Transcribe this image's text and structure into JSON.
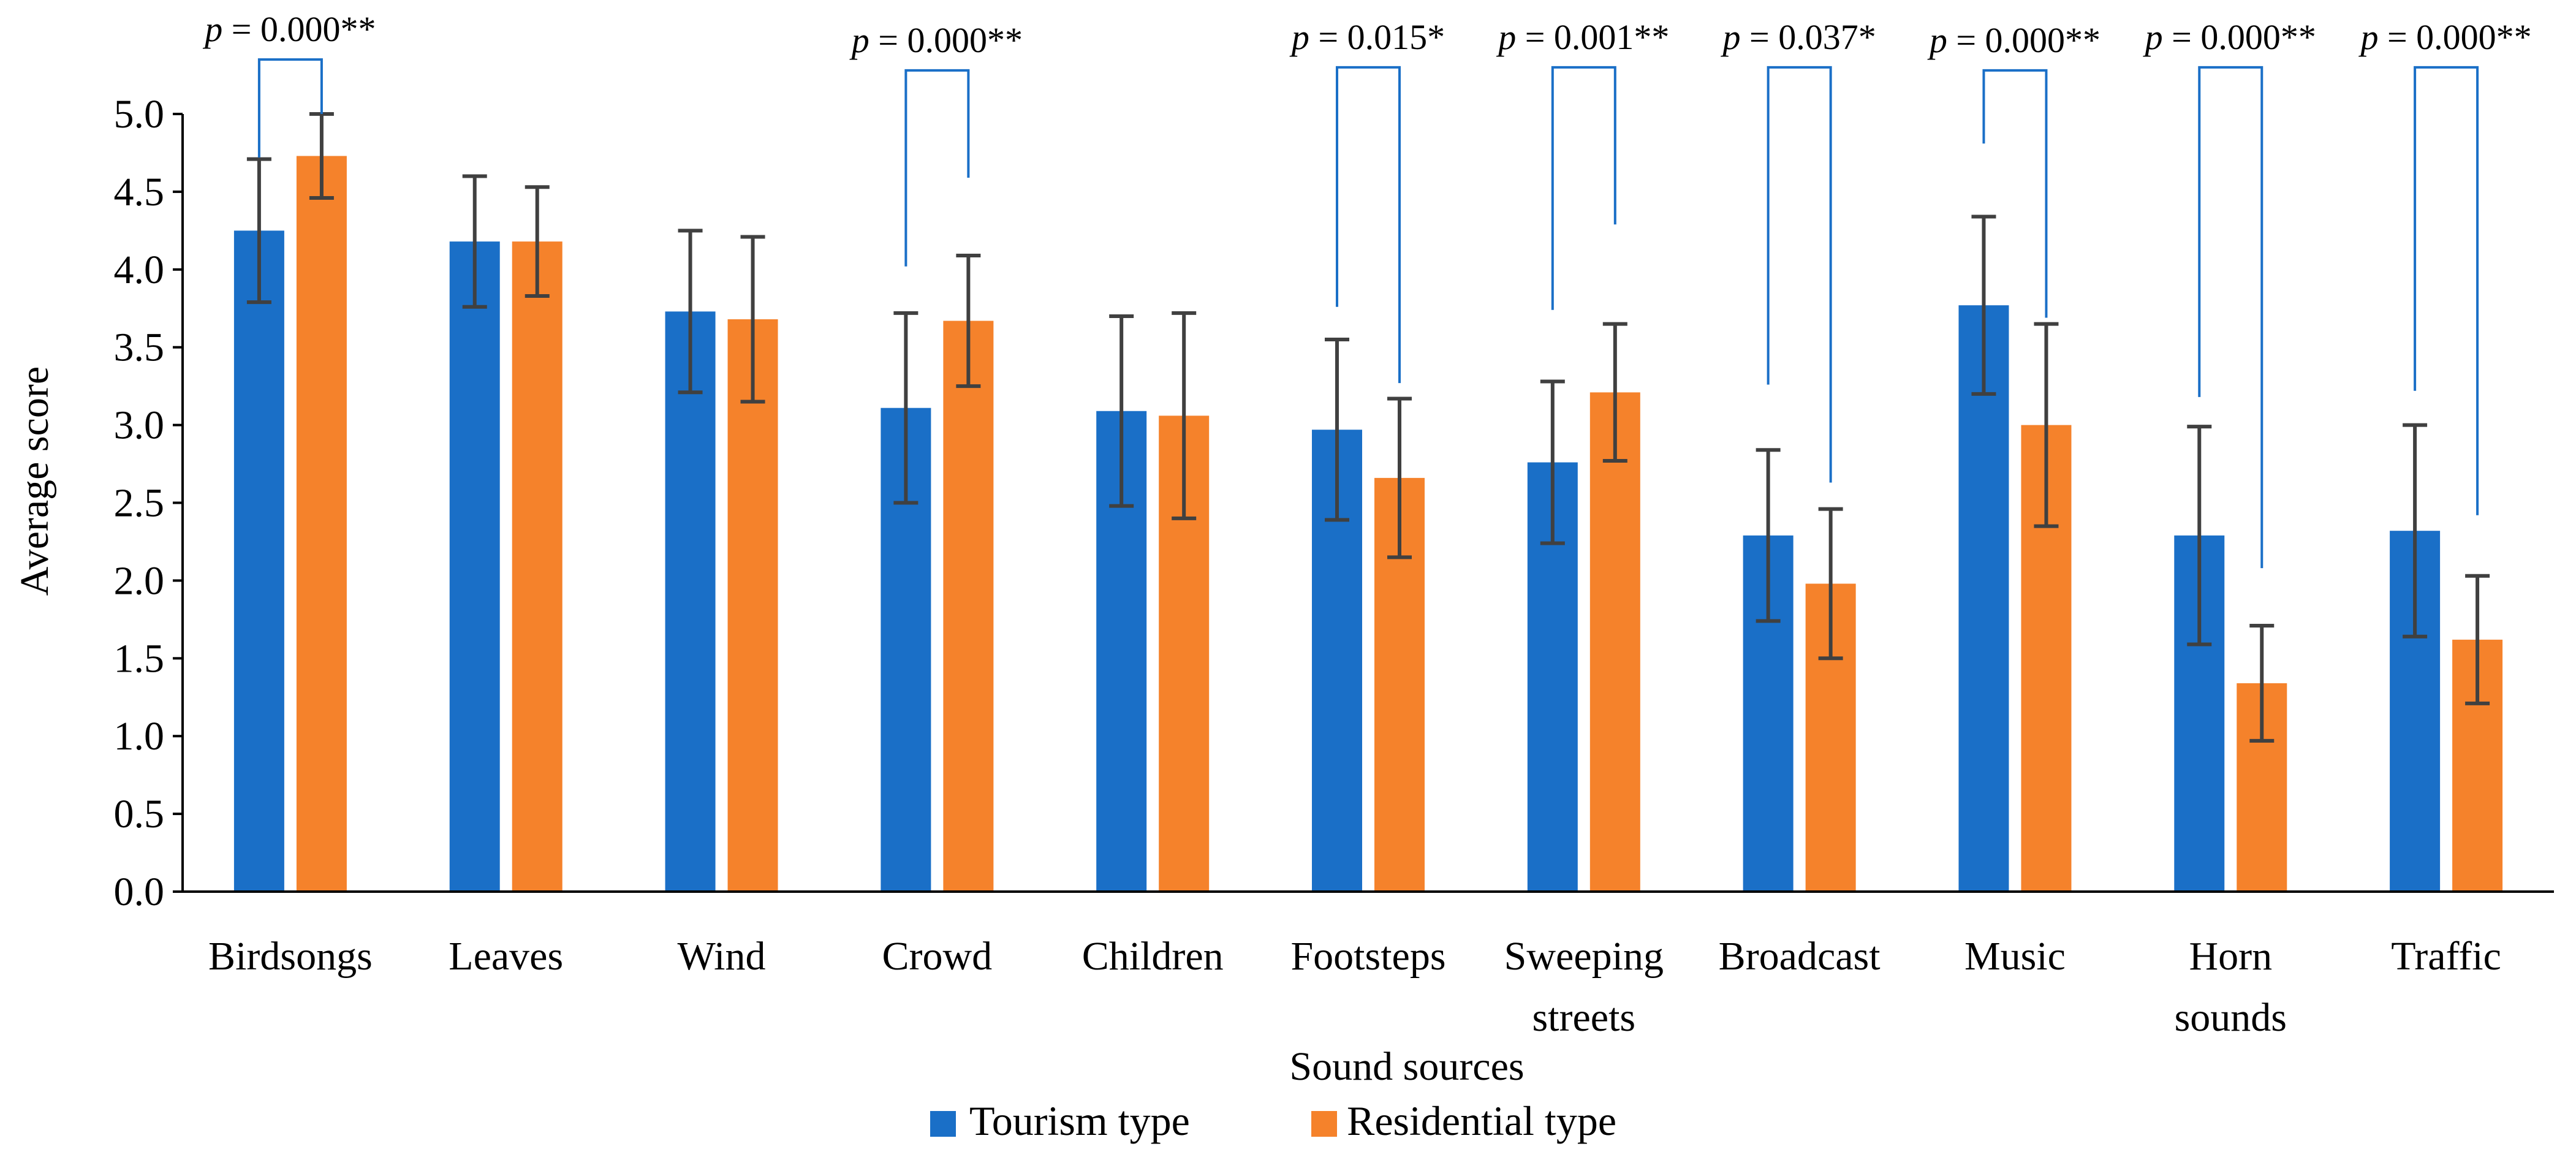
{
  "chart_data": {
    "type": "bar",
    "xlabel": "Sound sources",
    "ylabel": "Average score",
    "ylim": [
      0,
      5
    ],
    "yticks": [
      "0.0",
      "0.5",
      "1.0",
      "1.5",
      "2.0",
      "2.5",
      "3.0",
      "3.5",
      "4.0",
      "4.5",
      "5.0"
    ],
    "categories": [
      [
        "Birdsongs"
      ],
      [
        "Leaves"
      ],
      [
        "Wind"
      ],
      [
        "Crowd"
      ],
      [
        "Children"
      ],
      [
        "Footsteps"
      ],
      [
        "Sweeping",
        "streets"
      ],
      [
        "Broadcast"
      ],
      [
        "Music"
      ],
      [
        "Horn",
        "sounds"
      ],
      [
        "Traffic"
      ]
    ],
    "series": [
      {
        "name": "Tourism type",
        "color": "#1a6fc7",
        "values": [
          4.25,
          4.18,
          3.73,
          3.11,
          3.09,
          2.97,
          2.76,
          2.29,
          3.77,
          2.29,
          2.32
        ],
        "errors": [
          0.46,
          0.42,
          0.52,
          0.61,
          0.61,
          0.58,
          0.52,
          0.55,
          0.57,
          0.7,
          0.68
        ]
      },
      {
        "name": "Residential type",
        "color": "#f5822b",
        "values": [
          4.73,
          4.18,
          3.68,
          3.67,
          3.06,
          2.66,
          3.21,
          1.98,
          3.0,
          1.34,
          1.62
        ],
        "errors": [
          0.27,
          0.35,
          0.53,
          0.42,
          0.66,
          0.51,
          0.44,
          0.48,
          0.65,
          0.37,
          0.41
        ]
      }
    ],
    "significance": [
      {
        "category_index": 0,
        "italic": "p",
        "rest": " = 0.000**",
        "left_top": 4.72,
        "right_top": 5.0,
        "bar_level": 5.35
      },
      {
        "category_index": 3,
        "italic": "p",
        "rest": " = 0.000**",
        "left_top": 4.02,
        "right_top": 4.59,
        "bar_level": 5.28
      },
      {
        "category_index": 5,
        "italic": "p",
        "rest": " = 0.015*",
        "left_top": 3.76,
        "right_top": 3.27,
        "bar_level": 5.3
      },
      {
        "category_index": 6,
        "italic": "p",
        "rest": " = 0.001**",
        "left_top": 3.74,
        "right_top": 4.29,
        "bar_level": 5.3
      },
      {
        "category_index": 7,
        "italic": "p",
        "rest": " = 0.037*",
        "left_top": 3.26,
        "right_top": 2.63,
        "bar_level": 5.3
      },
      {
        "category_index": 8,
        "italic": "p",
        "rest": " = 0.000**",
        "left_top": 4.81,
        "right_top": 3.69,
        "bar_level": 5.28
      },
      {
        "category_index": 9,
        "italic": "p",
        "rest": " = 0.000**",
        "left_top": 3.18,
        "right_top": 2.08,
        "bar_level": 5.3
      },
      {
        "category_index": 10,
        "italic": "p",
        "rest": " = 0.000**",
        "left_top": 3.22,
        "right_top": 2.42,
        "bar_level": 5.3
      }
    ],
    "legend_position": "bottom-center"
  },
  "colors": {
    "axis": "#000000",
    "error_bar": "#404040",
    "bracket": "#1a6fc7"
  }
}
